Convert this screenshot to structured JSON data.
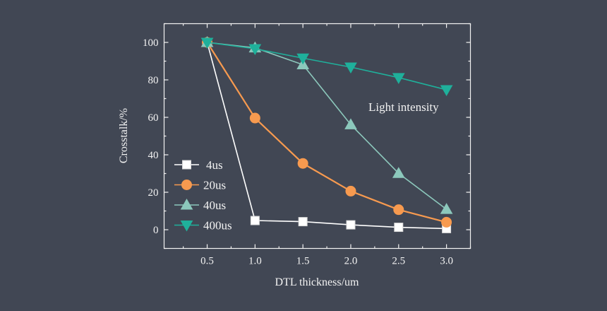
{
  "chart_data": {
    "type": "line",
    "title": "",
    "xlabel": "DTL thickness/um",
    "ylabel": "Crosstalk/%",
    "xlim": [
      0.05,
      3.25
    ],
    "ylim": [
      -10,
      110
    ],
    "xticks": [
      0.5,
      1.0,
      1.5,
      2.0,
      2.5,
      3.0
    ],
    "xtick_labels": [
      "0.5",
      "1.0",
      "1.5",
      "2.0",
      "2.5",
      "3.0"
    ],
    "yticks": [
      0,
      20,
      40,
      60,
      80,
      100
    ],
    "ytick_labels": [
      "0",
      "20",
      "40",
      "60",
      "80",
      "100"
    ],
    "grid": false,
    "legend_position": "bottom-left",
    "annotation": "Light intensity",
    "x": [
      0.5,
      1.0,
      1.5,
      2.0,
      2.5,
      3.0
    ],
    "series": [
      {
        "name": "4us",
        "marker": "square",
        "color": "#ffffff",
        "values": [
          100,
          4.9,
          4.3,
          2.6,
          1.3,
          0.6
        ]
      },
      {
        "name": "20us",
        "marker": "circle",
        "color": "#f79a4f",
        "values": [
          100,
          59.6,
          35.4,
          20.6,
          10.7,
          4.0
        ]
      },
      {
        "name": "40us",
        "marker": "triangle-up",
        "color": "#8cc8bc",
        "values": [
          100,
          97.1,
          88.1,
          56.1,
          30.1,
          10.9
        ]
      },
      {
        "name": "400us",
        "marker": "triangle-down",
        "color": "#1fb09b",
        "values": [
          100,
          96.6,
          91.6,
          86.8,
          81.2,
          74.7
        ]
      }
    ]
  }
}
